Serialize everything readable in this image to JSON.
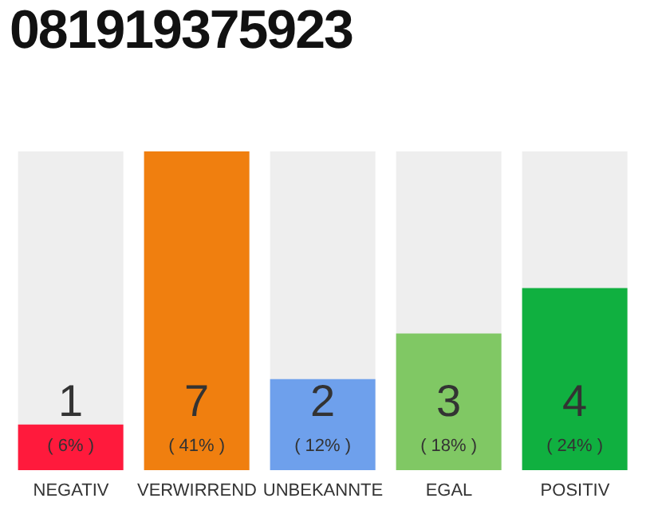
{
  "chart_data": {
    "type": "bar",
    "title": "081919375923",
    "categories": [
      "NEGATIV",
      "VERWIRREND",
      "UNBEKANNTE",
      "EGAL",
      "POSITIV"
    ],
    "values": [
      1,
      7,
      2,
      3,
      4
    ],
    "colors": [
      "#ff1a3c",
      "#f07f0f",
      "#6ea0ec",
      "#80c864",
      "#10b040"
    ],
    "data_labels": true,
    "annotations": [
      "( 6% )",
      "( 41% )",
      "( 12% )",
      "( 18% )",
      "( 24% )"
    ]
  }
}
